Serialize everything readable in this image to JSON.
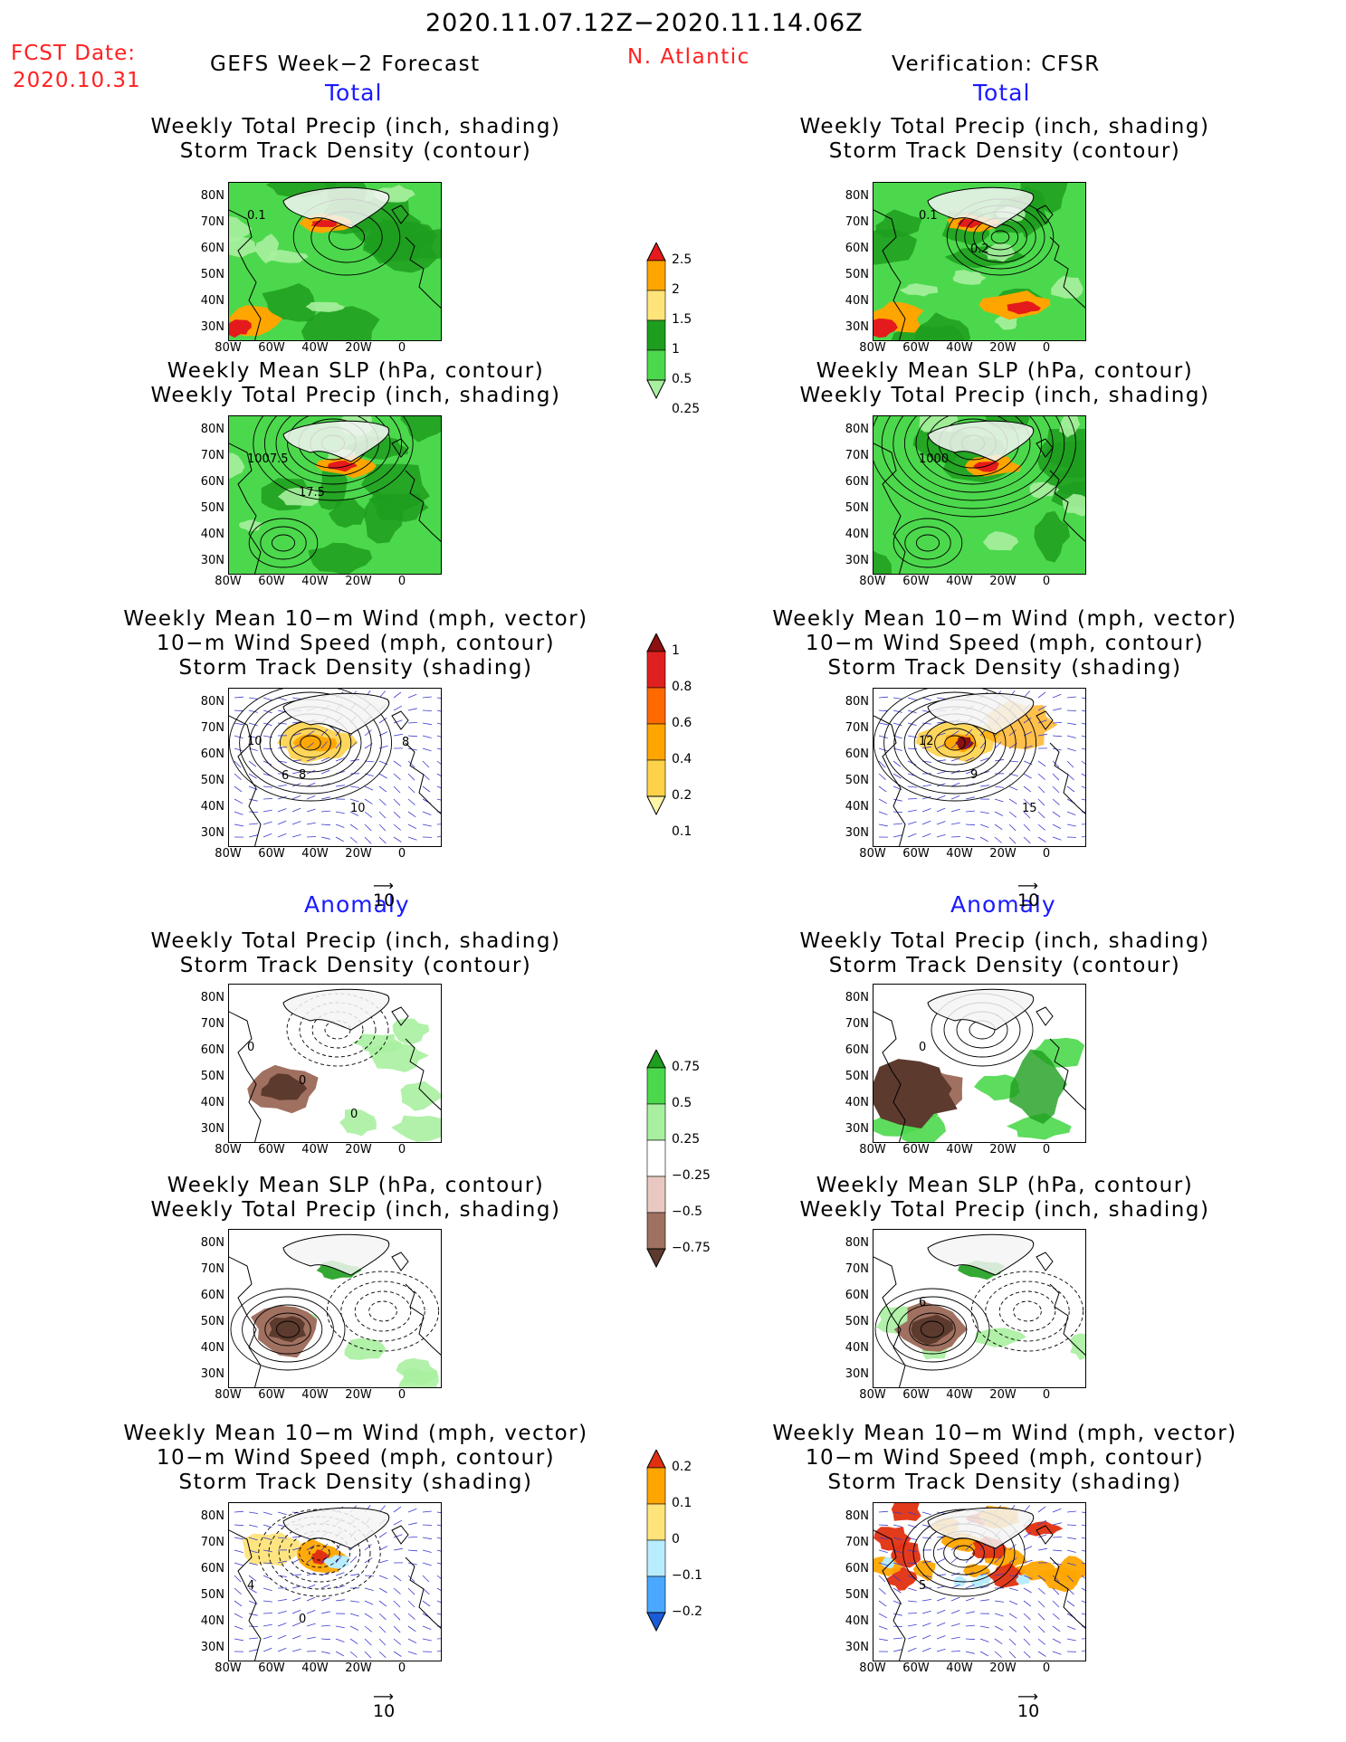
{
  "header": {
    "date_range": "2020.11.07.12Z−2020.11.14.06Z",
    "fcst_label": "FCST Date:",
    "fcst_date": "2020.10.31",
    "region": "N. Atlantic",
    "left_title": "GEFS Week−2 Forecast",
    "right_title": "Verification: CFSR"
  },
  "sections": {
    "total": "Total",
    "anomaly": "Anomaly"
  },
  "panel_titles": {
    "precip_track": [
      "Weekly Total Precip (inch, shading)",
      "Storm Track Density (contour)"
    ],
    "slp_precip": [
      "Weekly Mean SLP (hPa, contour)",
      "Weekly Total Precip (inch, shading)"
    ],
    "wind": [
      "Weekly Mean 10−m Wind (mph, vector)",
      "10−m Wind Speed (mph, contour)",
      "Storm Track Density (shading)"
    ]
  },
  "axes": {
    "lat_ticks": [
      "80N",
      "70N",
      "60N",
      "50N",
      "40N",
      "30N"
    ],
    "lon_ticks": [
      "80W",
      "60W",
      "40W",
      "20W",
      "0"
    ]
  },
  "vector_ref": "10",
  "panel_labels": {
    "fc_total_precip": [
      "0.1"
    ],
    "fc_total_slp": [
      "1007.5",
      "17.5"
    ],
    "fc_total_wind": [
      "10",
      "8",
      "10",
      "8",
      "6"
    ],
    "vr_total_precip": [
      "0.1",
      "0.2"
    ],
    "vr_total_slp": [
      "1000"
    ],
    "vr_total_wind": [
      "12",
      "9",
      "15"
    ],
    "fc_anom_precip": [
      "0",
      "0",
      "0"
    ],
    "vr_anom_precip": [
      "0"
    ],
    "fc_anom_slp": [],
    "vr_anom_slp": [
      "6"
    ],
    "fc_anom_wind": [
      "4",
      "0"
    ],
    "vr_anom_wind": [
      "5"
    ]
  },
  "colorbars": {
    "total_precip": {
      "labels": [
        "2.5",
        "2",
        "1.5",
        "1",
        "0.5",
        "0.25"
      ],
      "colors": [
        "#e41a1c",
        "#ffa500",
        "#ffe47a",
        "#1e9e1e",
        "#4cd84c",
        "#a8f0a0"
      ]
    },
    "track_density": {
      "labels": [
        "1",
        "0.8",
        "0.6",
        "0.4",
        "0.2",
        "0.1"
      ],
      "colors": [
        "#8b1010",
        "#e02020",
        "#ff6a00",
        "#ffa500",
        "#ffd24a",
        "#fff5a8"
      ]
    },
    "precip_anom": {
      "labels": [
        "0.75",
        "0.5",
        "0.25",
        "−0.25",
        "−0.5",
        "−0.75"
      ],
      "colors": [
        "#1e9e1e",
        "#4cd84c",
        "#a8f0a0",
        "#ffffff",
        "#e8c8c0",
        "#a07060",
        "#5c3a2e"
      ]
    },
    "track_anom": {
      "labels": [
        "0.2",
        "0.1",
        "0",
        "−0.1",
        "−0.2"
      ],
      "colors": [
        "#e03010",
        "#ffa500",
        "#ffe47a",
        "#b8ecff",
        "#4aa8ff",
        "#1a5cd8"
      ]
    }
  }
}
